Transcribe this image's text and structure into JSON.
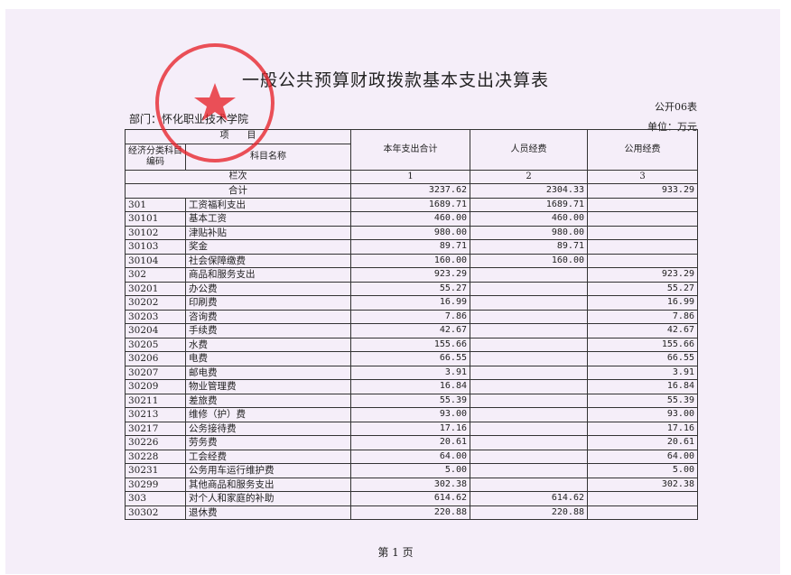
{
  "title": "一般公共预算财政拨款基本支出决算表",
  "form_no": "公开06表",
  "department": "部门：怀化职业技术学院",
  "unit": "单位：万元",
  "stamp_text": "怀化职业技术学院",
  "header": {
    "item": "项　　目",
    "code": "经济分类科目编码",
    "name": "科目名称",
    "total": "本年支出合计",
    "personnel": "人员经费",
    "public": "公用经费",
    "col_index_label": "栏次",
    "col_index": [
      "1",
      "2",
      "3"
    ],
    "sum_label": "合计",
    "sum": [
      "3237.62",
      "2304.33",
      "933.29"
    ]
  },
  "rows": [
    {
      "code": "301",
      "name": "工资福利支出",
      "total": "1689.71",
      "personnel": "1689.71",
      "public": ""
    },
    {
      "code": "30101",
      "name": "基本工资",
      "total": "460.00",
      "personnel": "460.00",
      "public": ""
    },
    {
      "code": "30102",
      "name": "津贴补贴",
      "total": "980.00",
      "personnel": "980.00",
      "public": ""
    },
    {
      "code": "30103",
      "name": "奖金",
      "total": "89.71",
      "personnel": "89.71",
      "public": ""
    },
    {
      "code": "30104",
      "name": "社会保障缴费",
      "total": "160.00",
      "personnel": "160.00",
      "public": ""
    },
    {
      "code": "302",
      "name": "商品和服务支出",
      "total": "923.29",
      "personnel": "",
      "public": "923.29"
    },
    {
      "code": "30201",
      "name": "办公费",
      "total": "55.27",
      "personnel": "",
      "public": "55.27"
    },
    {
      "code": "30202",
      "name": "印刷费",
      "total": "16.99",
      "personnel": "",
      "public": "16.99"
    },
    {
      "code": "30203",
      "name": "咨询费",
      "total": "7.86",
      "personnel": "",
      "public": "7.86"
    },
    {
      "code": "30204",
      "name": "手续费",
      "total": "42.67",
      "personnel": "",
      "public": "42.67"
    },
    {
      "code": "30205",
      "name": "水费",
      "total": "155.66",
      "personnel": "",
      "public": "155.66"
    },
    {
      "code": "30206",
      "name": "电费",
      "total": "66.55",
      "personnel": "",
      "public": "66.55"
    },
    {
      "code": "30207",
      "name": "邮电费",
      "total": "3.91",
      "personnel": "",
      "public": "3.91"
    },
    {
      "code": "30209",
      "name": "物业管理费",
      "total": "16.84",
      "personnel": "",
      "public": "16.84"
    },
    {
      "code": "30211",
      "name": "差旅费",
      "total": "55.39",
      "personnel": "",
      "public": "55.39"
    },
    {
      "code": "30213",
      "name": "维修（护）费",
      "total": "93.00",
      "personnel": "",
      "public": "93.00"
    },
    {
      "code": "30217",
      "name": "公务接待费",
      "total": "17.16",
      "personnel": "",
      "public": "17.16"
    },
    {
      "code": "30226",
      "name": "劳务费",
      "total": "20.61",
      "personnel": "",
      "public": "20.61"
    },
    {
      "code": "30228",
      "name": "工会经费",
      "total": "64.00",
      "personnel": "",
      "public": "64.00"
    },
    {
      "code": "30231",
      "name": "公务用车运行维护费",
      "total": "5.00",
      "personnel": "",
      "public": "5.00"
    },
    {
      "code": "30299",
      "name": "其他商品和服务支出",
      "total": "302.38",
      "personnel": "",
      "public": "302.38"
    },
    {
      "code": "303",
      "name": "对个人和家庭的补助",
      "total": "614.62",
      "personnel": "614.62",
      "public": ""
    },
    {
      "code": "30302",
      "name": "退休费",
      "total": "220.88",
      "personnel": "220.88",
      "public": ""
    }
  ],
  "page_number": "第 1 页",
  "colors": {
    "paper": "#f5eef9",
    "stamp": "#e8232a",
    "ink": "#222222"
  }
}
